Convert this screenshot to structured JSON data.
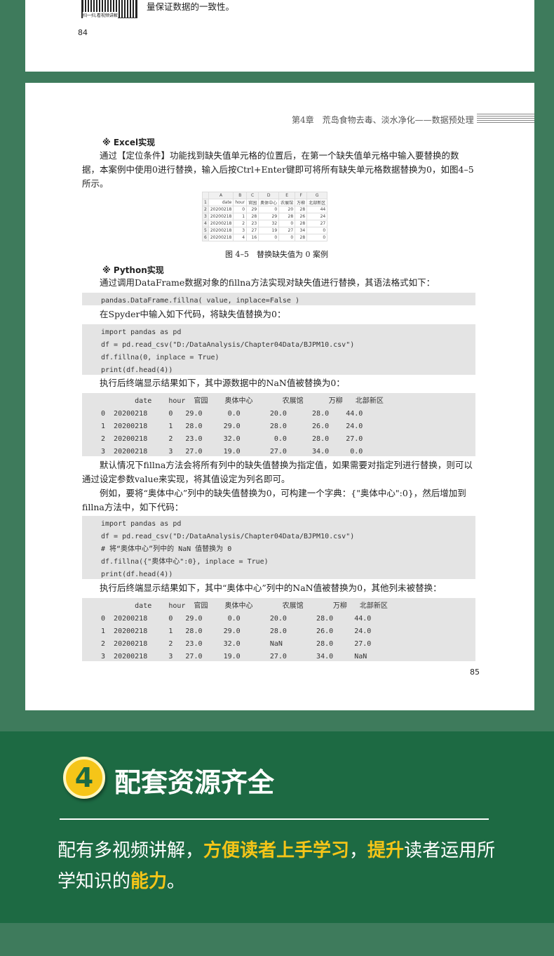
{
  "page84": {
    "scan_caption": "扫一扫,看视频讲解",
    "text": "量保证数据的一致性。",
    "page_number": "84"
  },
  "page85": {
    "header": "第4章　荒岛食物去毒、淡水净化——数据预处理",
    "excel_heading": "※ Excel实现",
    "excel_para": "通过【定位条件】功能找到缺失值单元格的位置后，在第一个缺失值单元格中输入要替换的数据，本案例中使用0进行替换，输入后按Ctrl+Enter键即可将所有缺失单元格数据替换为0，如图4–5所示。",
    "excel_table": {
      "cols": [
        "",
        "A",
        "B",
        "C",
        "D",
        "E",
        "F",
        "G"
      ],
      "rows": [
        [
          "1",
          "date",
          "hour",
          "官园",
          "奥体中心",
          "农展馆",
          "万柳",
          "北部新区"
        ],
        [
          "2",
          "20200218",
          "0",
          "29",
          "0",
          "20",
          "28",
          "44"
        ],
        [
          "3",
          "20200218",
          "1",
          "28",
          "29",
          "28",
          "26",
          "24"
        ],
        [
          "4",
          "20200218",
          "2",
          "23",
          "32",
          "0",
          "28",
          "27"
        ],
        [
          "5",
          "20200218",
          "3",
          "27",
          "19",
          "27",
          "34",
          "0"
        ],
        [
          "6",
          "20200218",
          "4",
          "16",
          "0",
          "0",
          "28",
          "0"
        ]
      ]
    },
    "figure_caption": "图 4–5　替换缺失值为 0 案例",
    "python_heading": "※ Python实现",
    "p1": "通过调用DataFrame数据对象的fillna方法实现对缺失值进行替换，其语法格式如下：",
    "code1": "pandas.DataFrame.fillna( value, inplace=False )",
    "p2": "在Spyder中输入如下代码，将缺失值替换为0：",
    "code2": "import pandas as pd\ndf = pd.read_csv(\"D:/DataAnalysis/Chapter04Data/BJPM10.csv\")\ndf.fillna(0, inplace = True)\nprint(df.head(4))",
    "p3": "执行后终端显示结果如下，其中源数据中的NaN值被替换为0：",
    "out1": "        date    hour  官园    奥体中心       农展馆      万柳   北部新区\n0  20200218     0   29.0      0.0       20.0      28.0    44.0\n1  20200218     1   28.0     29.0       28.0      26.0    24.0\n2  20200218     2   23.0     32.0        0.0      28.0    27.0\n3  20200218     3   27.0     19.0       27.0      34.0     0.0",
    "p4": "默认情况下fillna方法会将所有列中的缺失值替换为指定值，如果需要对指定列进行替换，则可以通过设定参数value来实现，将其值设定为列名即可。",
    "p5": "例如，要将“奥体中心”列中的缺失值替换为0，可构建一个字典：{\"奥体中心\":0}，然后增加到fillna方法中，如下代码：",
    "code3": "import pandas as pd\ndf = pd.read_csv(\"D:/DataAnalysis/Chapter04Data/BJPM10.csv\")\n# 将“奥体中心”列中的 NaN 值替换为 0\ndf.fillna({\"奥体中心\":0}, inplace = True)\nprint(df.head(4))",
    "p6": "执行后终端显示结果如下，其中“奥体中心”列中的NaN值被替换为0，其他列未被替换：",
    "out2": "        date    hour  官园    奥体中心       农展馆       万柳   北部新区\n0  20200218     0   29.0      0.0       20.0       28.0     44.0\n1  20200218     1   28.0     29.0       28.0       26.0     24.0\n2  20200218     2   23.0     32.0       NaN        28.0     27.0\n3  20200218     3   27.0     19.0       27.0       34.0     NaN",
    "page_number": "85"
  },
  "feature": {
    "number": "4",
    "title": "配套资源齐全",
    "desc_parts": [
      "配有多视频讲解，",
      "方便读者上手学习",
      "，",
      "提升",
      "读者运用所学知识的",
      "能力",
      "。"
    ],
    "accent": "#f5c518"
  }
}
